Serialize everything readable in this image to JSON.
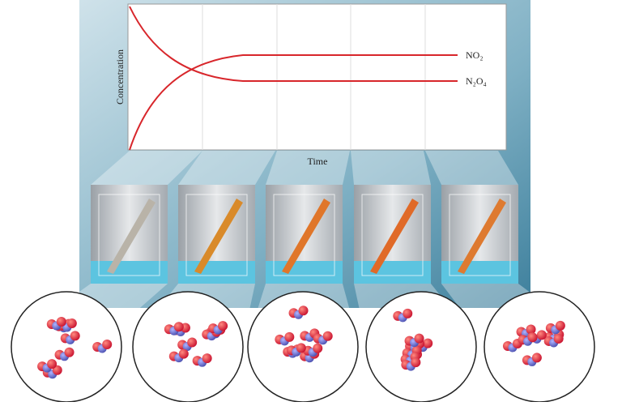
{
  "axis_labels": {
    "y": "Concentration",
    "x": "Time"
  },
  "curve_labels": [
    "NO₂",
    "N₂O₄"
  ]
}
